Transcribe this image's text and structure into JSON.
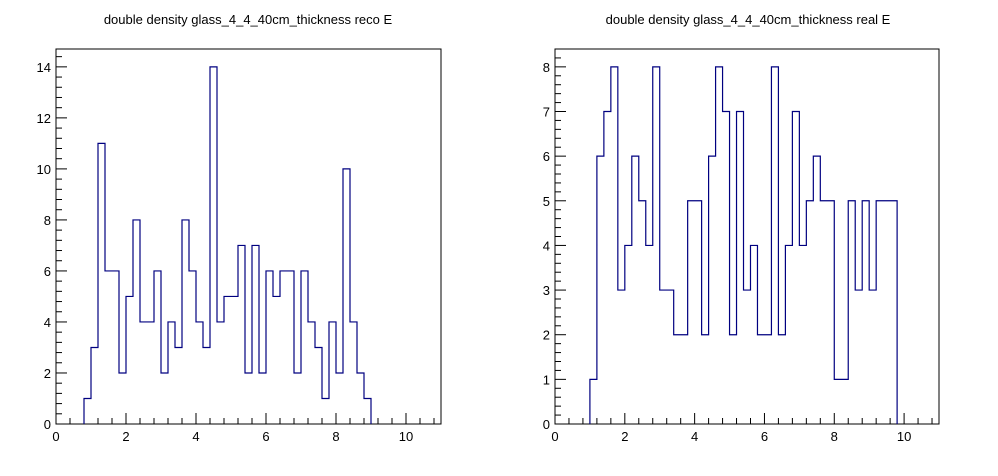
{
  "chart_data": [
    {
      "type": "histogram",
      "title": "double density glass_4_4_40cm_thickness reco E",
      "xlim": [
        0,
        11
      ],
      "ylim": [
        0,
        14.7
      ],
      "x_major_ticks": [
        0,
        2,
        4,
        6,
        8,
        10
      ],
      "y_major_ticks": [
        0,
        2,
        4,
        6,
        8,
        10,
        12,
        14
      ],
      "bin_width": 0.2,
      "bin_start": 0.8,
      "values": [
        1,
        3,
        11,
        6,
        6,
        2,
        5,
        8,
        4,
        4,
        6,
        2,
        4,
        3,
        8,
        6,
        4,
        3,
        14,
        4,
        5,
        5,
        7,
        2,
        7,
        2,
        6,
        5,
        6,
        6,
        2,
        6,
        4,
        3,
        1,
        4,
        2,
        10,
        4,
        2,
        1
      ],
      "line_color": "#000080",
      "grid": false
    },
    {
      "type": "histogram",
      "title": "double density glass_4_4_40cm_thickness real E",
      "xlim": [
        0,
        11
      ],
      "ylim": [
        0,
        8.4
      ],
      "x_major_ticks": [
        0,
        2,
        4,
        6,
        8,
        10
      ],
      "y_major_ticks": [
        0,
        1,
        2,
        3,
        4,
        5,
        6,
        7,
        8
      ],
      "bin_width": 0.2,
      "bin_start": 1.0,
      "values": [
        1,
        6,
        7,
        8,
        3,
        4,
        6,
        5,
        4,
        8,
        3,
        3,
        2,
        2,
        5,
        5,
        2,
        6,
        8,
        7,
        2,
        7,
        3,
        4,
        2,
        2,
        8,
        2,
        4,
        7,
        4,
        5,
        6,
        5,
        5,
        1,
        1,
        5,
        3,
        5,
        3,
        5,
        5,
        5
      ],
      "line_color": "#000080",
      "grid": false
    }
  ]
}
